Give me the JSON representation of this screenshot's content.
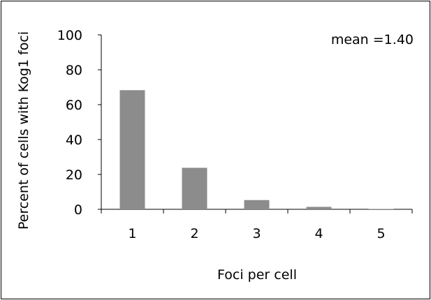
{
  "chart_data": {
    "type": "bar",
    "categories": [
      "1",
      "2",
      "3",
      "4",
      "5"
    ],
    "values": [
      68.3,
      23.8,
      5.3,
      1.4,
      0.2
    ],
    "xlabel": "Foci per cell",
    "ylabel": "Percent of cells with Kog1 foci",
    "ylim": [
      0,
      100
    ],
    "yticks": [
      "0",
      "20",
      "40",
      "60",
      "80",
      "100"
    ],
    "annotation": "mean =1.40",
    "bar_color": "#8c8c8c",
    "grid": false,
    "legend": "none"
  }
}
